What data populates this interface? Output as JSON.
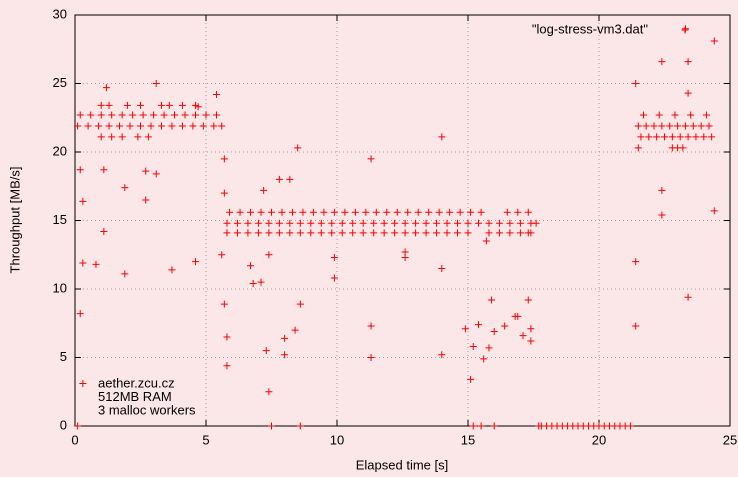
{
  "chart_data": {
    "type": "scatter",
    "xlabel": "Elapsed time [s]",
    "ylabel": "Throughput [MB/s]",
    "xlim": [
      0,
      25
    ],
    "xticks": [
      0,
      5,
      10,
      15,
      20,
      25
    ],
    "ylim": [
      0,
      30
    ],
    "yticks": [
      0,
      5,
      10,
      15,
      20,
      25,
      30
    ],
    "grid": true,
    "legend": "top-right",
    "annotations": [
      "aether.zcu.cz",
      "512MB RAM",
      "3 malloc workers"
    ],
    "series": [
      {
        "name": "\"log-stress-vm3.dat\"",
        "color": "#ff0000",
        "x": [
          0.2,
          0.6,
          1.0,
          1.4,
          1.8,
          2.2,
          2.6,
          3.0,
          3.4,
          3.8,
          4.2,
          4.6,
          5.0,
          5.4,
          0.1,
          0.5,
          0.9,
          1.3,
          1.7,
          2.1,
          2.5,
          2.9,
          3.3,
          3.7,
          4.1,
          4.5,
          4.9,
          5.3,
          5.6,
          1.0,
          1.4,
          1.8,
          2.4,
          2.8,
          1.0,
          1.3,
          2.0,
          2.5,
          3.3,
          3.6,
          4.1,
          4.6,
          0.2,
          0.3,
          0.2,
          0.3,
          0.8,
          1.1,
          1.1,
          1.2,
          1.9,
          1.9,
          2.7,
          2.7,
          3.1,
          3.1,
          3.7,
          4.6,
          4.7,
          5.4,
          0.1,
          0.3,
          5.9,
          6.3,
          6.7,
          7.1,
          7.5,
          7.9,
          8.3,
          8.7,
          9.1,
          9.5,
          9.9,
          10.3,
          10.7,
          11.1,
          11.5,
          11.9,
          12.3,
          12.7,
          13.1,
          13.5,
          13.9,
          14.3,
          14.7,
          15.1,
          15.5,
          16.5,
          16.9,
          17.3,
          5.8,
          6.2,
          6.6,
          7.0,
          7.4,
          7.8,
          8.2,
          8.6,
          9.0,
          9.4,
          9.8,
          10.2,
          10.6,
          11.0,
          11.4,
          11.8,
          12.2,
          12.6,
          13.0,
          13.4,
          13.8,
          14.2,
          14.6,
          15.0,
          15.4,
          15.8,
          16.2,
          16.6,
          17.0,
          17.4,
          17.6,
          5.8,
          6.2,
          6.6,
          7.0,
          7.4,
          7.8,
          8.2,
          8.6,
          9.0,
          9.4,
          9.8,
          10.2,
          10.6,
          11.0,
          11.4,
          11.8,
          12.2,
          12.6,
          13.0,
          13.4,
          13.8,
          14.2,
          14.6,
          15.0,
          15.8,
          16.2,
          16.6,
          17.0,
          17.4,
          5.6,
          5.7,
          5.7,
          5.7,
          5.8,
          5.8,
          6.7,
          6.8,
          7.1,
          7.2,
          7.4,
          7.3,
          7.4,
          7.5,
          7.8,
          8.0,
          8.0,
          8.2,
          8.4,
          8.5,
          8.6,
          8.6,
          9.9,
          9.9,
          11.3,
          11.3,
          11.3,
          12.6,
          12.6,
          14.0,
          14.0,
          14.0,
          14.9,
          15.1,
          15.2,
          15.4,
          15.6,
          15.8,
          15.9,
          16.0,
          16.4,
          16.8,
          16.9,
          17.1,
          17.3,
          17.4,
          17.4,
          17.3,
          15.7,
          16.0,
          15.5,
          15.2,
          17.7,
          17.8,
          18.0,
          18.2,
          18.4,
          18.6,
          18.8,
          19.0,
          19.2,
          19.4,
          19.6,
          19.8,
          20.0,
          20.2,
          20.4,
          20.6,
          20.8,
          21.0,
          21.2,
          21.5,
          21.8,
          22.1,
          22.4,
          22.7,
          23.0,
          23.3,
          23.6,
          23.9,
          24.2,
          21.6,
          21.9,
          22.2,
          22.5,
          22.8,
          23.1,
          23.4,
          23.7,
          24.0,
          24.3,
          21.7,
          22.3,
          22.9,
          23.5,
          24.1,
          21.4,
          21.4,
          21.4,
          21.5,
          22.4,
          22.4,
          22.4,
          22.8,
          23.0,
          23.2,
          23.3,
          23.4,
          23.4,
          23.4,
          24.4,
          24.4
        ],
        "values": [
          22.7,
          22.7,
          22.7,
          22.7,
          22.7,
          22.7,
          22.7,
          22.7,
          22.7,
          22.7,
          22.7,
          22.7,
          22.7,
          22.7,
          21.9,
          21.9,
          21.9,
          21.9,
          21.9,
          21.9,
          21.9,
          21.9,
          21.9,
          21.9,
          21.9,
          21.9,
          21.9,
          21.9,
          21.9,
          21.1,
          21.1,
          21.1,
          21.1,
          21.1,
          23.4,
          23.4,
          23.4,
          23.4,
          23.4,
          23.4,
          23.4,
          23.4,
          18.7,
          16.4,
          8.2,
          11.9,
          11.8,
          18.7,
          14.2,
          24.7,
          17.4,
          11.1,
          16.5,
          18.6,
          18.4,
          25.0,
          11.4,
          12.0,
          23.3,
          24.2,
          0,
          3.1,
          15.6,
          15.6,
          15.6,
          15.6,
          15.6,
          15.6,
          15.6,
          15.6,
          15.6,
          15.6,
          15.6,
          15.6,
          15.6,
          15.6,
          15.6,
          15.6,
          15.6,
          15.6,
          15.6,
          15.6,
          15.6,
          15.6,
          15.6,
          15.6,
          15.6,
          15.6,
          15.6,
          15.6,
          14.8,
          14.8,
          14.8,
          14.8,
          14.8,
          14.8,
          14.8,
          14.8,
          14.8,
          14.8,
          14.8,
          14.8,
          14.8,
          14.8,
          14.8,
          14.8,
          14.8,
          14.8,
          14.8,
          14.8,
          14.8,
          14.8,
          14.8,
          14.8,
          14.8,
          14.8,
          14.8,
          14.8,
          14.8,
          14.8,
          14.8,
          14.1,
          14.1,
          14.1,
          14.1,
          14.1,
          14.1,
          14.1,
          14.1,
          14.1,
          14.1,
          14.1,
          14.1,
          14.1,
          14.1,
          14.1,
          14.1,
          14.1,
          14.1,
          14.1,
          14.1,
          14.1,
          14.1,
          14.1,
          14.1,
          14.1,
          14.1,
          14.1,
          14.1,
          14.1,
          12.5,
          19.5,
          17.0,
          8.9,
          6.5,
          4.4,
          11.7,
          10.4,
          10.5,
          17.2,
          12.5,
          5.5,
          2.5,
          0,
          18.0,
          6.4,
          5.2,
          18.0,
          7.0,
          20.3,
          8.9,
          0,
          12.3,
          10.8,
          19.5,
          7.3,
          5.0,
          12.7,
          12.3,
          21.1,
          11.5,
          5.2,
          7.1,
          3.4,
          5.8,
          7.4,
          4.9,
          5.7,
          9.2,
          6.9,
          7.3,
          8.0,
          8.0,
          6.6,
          9.2,
          7.1,
          6.2,
          14.1,
          13.5,
          0,
          0,
          0,
          0,
          0,
          0,
          0,
          0,
          0,
          0,
          0,
          0,
          0,
          0,
          0,
          0,
          0,
          0,
          0,
          0,
          0,
          0,
          21.9,
          21.9,
          21.9,
          21.9,
          21.9,
          21.9,
          21.9,
          21.9,
          21.9,
          21.9,
          21.1,
          21.1,
          21.1,
          21.1,
          21.1,
          21.1,
          21.1,
          21.1,
          21.1,
          21.1,
          22.7,
          22.7,
          22.7,
          22.7,
          22.7,
          25.0,
          12.0,
          7.3,
          20.3,
          26.6,
          17.2,
          15.4,
          20.3,
          20.3,
          20.3,
          29.0,
          26.6,
          24.3,
          9.4,
          28.1,
          15.7
        ]
      }
    ]
  }
}
